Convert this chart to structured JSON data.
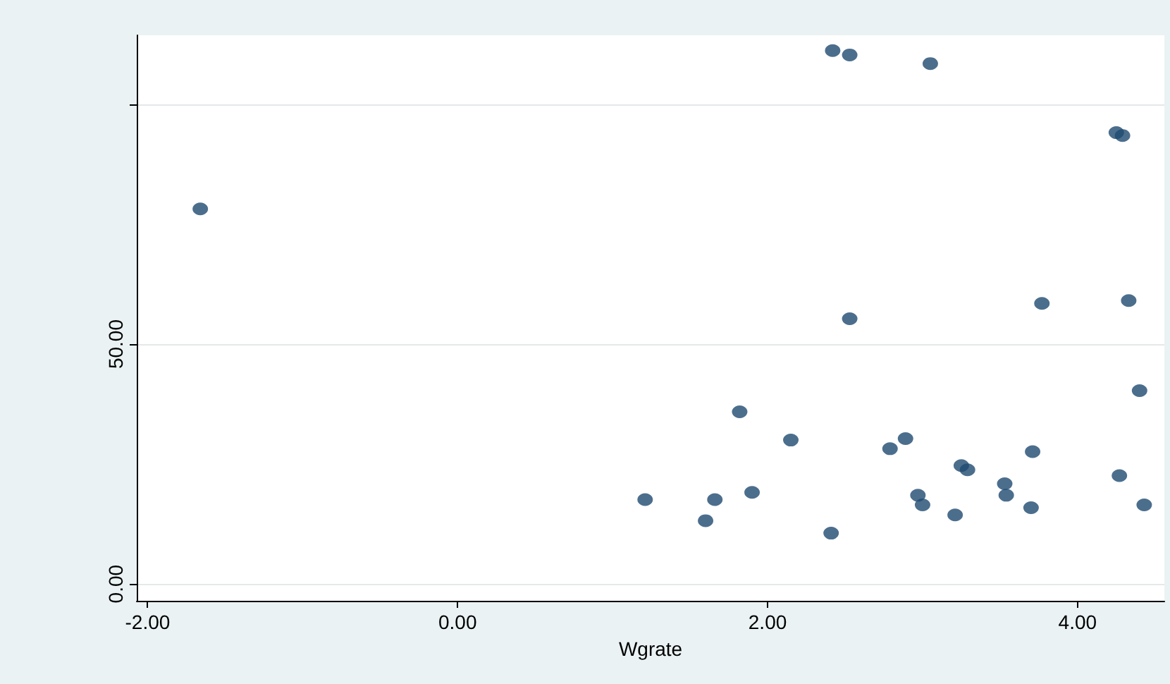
{
  "chart_data": {
    "type": "scatter",
    "xlabel": "Wgrate",
    "marker": "circle",
    "grid": "y",
    "xlim": [
      -2.07,
      4.56
    ],
    "ylim": [
      -3.5,
      114.4
    ],
    "xticks": [
      {
        "value": -2,
        "label": "-2.00"
      },
      {
        "value": 0,
        "label": "0.00"
      },
      {
        "value": 2,
        "label": "2.00"
      },
      {
        "value": 4,
        "label": "4.00"
      }
    ],
    "yticks": [
      {
        "value": 0,
        "label": "0.00"
      },
      {
        "value": 50,
        "label": "50.00"
      },
      {
        "value": 100,
        "label": null
      }
    ],
    "series": [
      {
        "color": "#1f4a70",
        "x": [
          -1.66,
          2.42,
          2.53,
          3.05,
          4.25,
          4.29,
          2.53,
          3.77,
          4.33,
          4.4,
          1.82,
          2.15,
          2.89,
          2.79,
          3.71,
          3.25,
          3.29,
          4.27,
          3.53,
          3.54,
          2.97,
          3.0,
          3.7,
          4.43,
          3.21,
          1.21,
          1.66,
          1.9,
          1.6,
          2.41
        ],
        "values": [
          78.2,
          111.2,
          110.3,
          108.5,
          94.1,
          93.5,
          55.3,
          58.5,
          59.1,
          40.3,
          35.9,
          30.0,
          30.3,
          28.2,
          27.6,
          24.7,
          23.8,
          22.6,
          20.9,
          18.5,
          18.5,
          16.5,
          15.9,
          16.5,
          14.4,
          17.6,
          17.6,
          19.1,
          13.2,
          10.6
        ]
      }
    ]
  }
}
